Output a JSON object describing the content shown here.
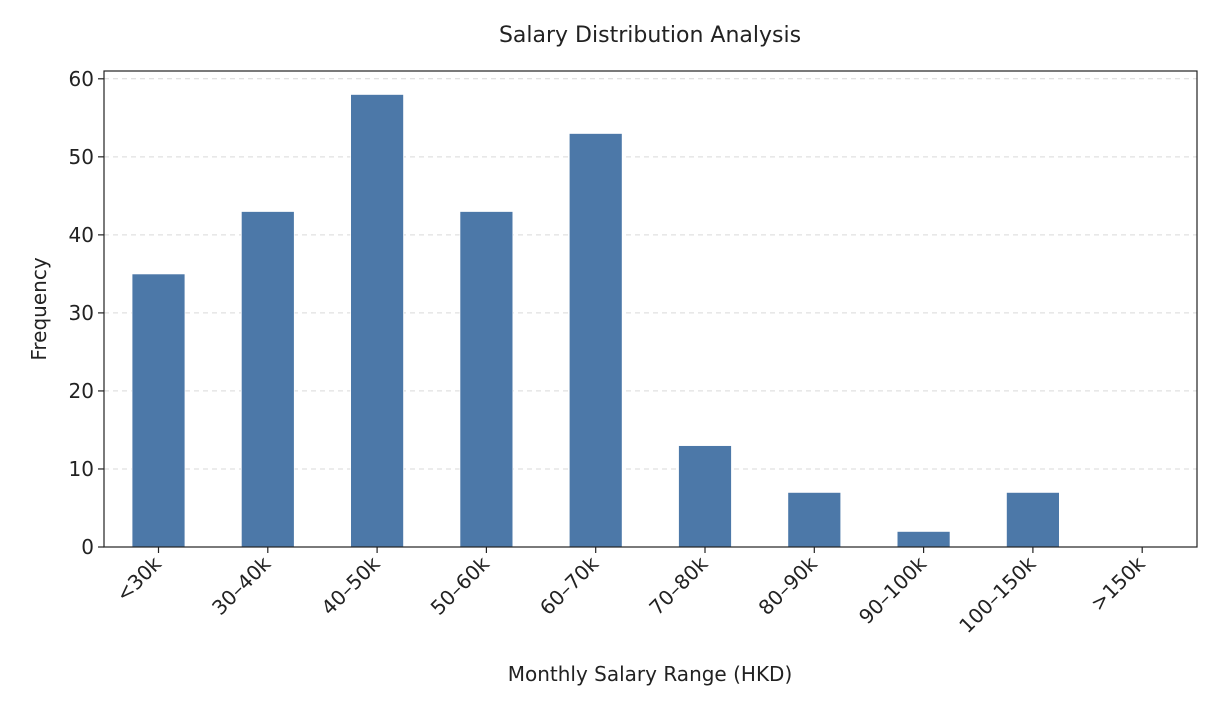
{
  "chart_data": {
    "type": "bar",
    "title": "Salary Distribution Analysis",
    "xlabel": "Monthly Salary Range (HKD)",
    "ylabel": "Frequency",
    "categories": [
      "<30k",
      "30–40k",
      "40–50k",
      "50–60k",
      "60–70k",
      "70–80k",
      "80–90k",
      "90–100k",
      "100–150k",
      ">150k"
    ],
    "values": [
      35,
      43,
      58,
      43,
      53,
      13,
      7,
      2,
      7,
      0
    ],
    "ylim": [
      0,
      61
    ],
    "yticks": [
      0,
      10,
      20,
      30,
      40,
      50,
      60
    ],
    "grid": true,
    "grid_axis": "y",
    "bar_color": "#4c78a8"
  }
}
